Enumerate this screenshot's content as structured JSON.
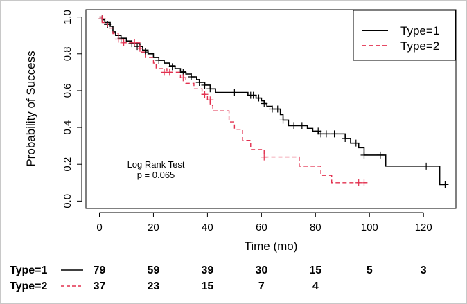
{
  "chart_data": {
    "type": "line",
    "subtype": "kaplan-meier step",
    "title": "",
    "xlabel": "Time (mo)",
    "ylabel": "Probability of Success",
    "xlim": [
      -5,
      132
    ],
    "ylim": [
      -0.04,
      1.04
    ],
    "x_ticks": [
      0,
      20,
      40,
      60,
      80,
      100,
      120
    ],
    "x_tick_labels": [
      "0",
      "20",
      "40",
      "60",
      "80",
      "100",
      "120"
    ],
    "y_ticks": [
      0.0,
      0.2,
      0.4,
      0.6,
      0.8,
      1.0
    ],
    "y_tick_labels": [
      "0.0",
      "0.2",
      "0.4",
      "0.6",
      "0.8",
      "1.0"
    ],
    "grid": false,
    "legend_position": "top-right",
    "annotation": {
      "line1": "Log Rank Test",
      "line2": "p = 0.065"
    },
    "series": [
      {
        "name": "Type=1",
        "color": "#000000",
        "dash": "solid",
        "steps": [
          [
            0,
            1.0
          ],
          [
            1,
            0.985
          ],
          [
            2,
            0.97
          ],
          [
            4,
            0.95
          ],
          [
            5,
            0.92
          ],
          [
            6,
            0.9
          ],
          [
            8,
            0.885
          ],
          [
            10,
            0.87
          ],
          [
            12,
            0.855
          ],
          [
            15,
            0.84
          ],
          [
            16,
            0.82
          ],
          [
            18,
            0.8
          ],
          [
            20,
            0.78
          ],
          [
            22,
            0.765
          ],
          [
            24,
            0.75
          ],
          [
            26,
            0.735
          ],
          [
            28,
            0.72
          ],
          [
            30,
            0.705
          ],
          [
            32,
            0.69
          ],
          [
            34,
            0.675
          ],
          [
            36,
            0.66
          ],
          [
            37,
            0.645
          ],
          [
            39,
            0.63
          ],
          [
            41,
            0.61
          ],
          [
            43,
            0.59
          ],
          [
            55,
            0.575
          ],
          [
            58,
            0.56
          ],
          [
            60,
            0.545
          ],
          [
            61,
            0.53
          ],
          [
            62,
            0.515
          ],
          [
            64,
            0.5
          ],
          [
            67,
            0.47
          ],
          [
            68,
            0.44
          ],
          [
            70,
            0.41
          ],
          [
            77,
            0.395
          ],
          [
            79,
            0.38
          ],
          [
            81,
            0.365
          ],
          [
            91,
            0.34
          ],
          [
            93,
            0.315
          ],
          [
            96,
            0.29
          ],
          [
            98,
            0.25
          ],
          [
            106,
            0.19
          ],
          [
            126,
            0.09
          ],
          [
            128,
            0.09
          ]
        ],
        "censored": [
          [
            1,
            0.99
          ],
          [
            3,
            0.96
          ],
          [
            8,
            0.885
          ],
          [
            12,
            0.855
          ],
          [
            14,
            0.84
          ],
          [
            17,
            0.81
          ],
          [
            22,
            0.765
          ],
          [
            27,
            0.73
          ],
          [
            31,
            0.7
          ],
          [
            34,
            0.675
          ],
          [
            37,
            0.645
          ],
          [
            39,
            0.63
          ],
          [
            41,
            0.61
          ],
          [
            50,
            0.59
          ],
          [
            56,
            0.575
          ],
          [
            57,
            0.575
          ],
          [
            59,
            0.56
          ],
          [
            61,
            0.53
          ],
          [
            64,
            0.5
          ],
          [
            66,
            0.5
          ],
          [
            68,
            0.44
          ],
          [
            72,
            0.41
          ],
          [
            75,
            0.41
          ],
          [
            81,
            0.38
          ],
          [
            82,
            0.365
          ],
          [
            84,
            0.365
          ],
          [
            87,
            0.365
          ],
          [
            91,
            0.34
          ],
          [
            95,
            0.315
          ],
          [
            98,
            0.25
          ],
          [
            104,
            0.25
          ],
          [
            121,
            0.19
          ],
          [
            128,
            0.09
          ]
        ]
      },
      {
        "name": "Type=2",
        "color": "#e2304f",
        "dash": "dashed",
        "steps": [
          [
            0,
            1.0
          ],
          [
            1,
            0.97
          ],
          [
            3,
            0.94
          ],
          [
            5,
            0.91
          ],
          [
            7,
            0.88
          ],
          [
            9,
            0.86
          ],
          [
            15,
            0.81
          ],
          [
            17,
            0.78
          ],
          [
            20,
            0.75
          ],
          [
            21,
            0.72
          ],
          [
            25,
            0.7
          ],
          [
            30,
            0.67
          ],
          [
            32,
            0.64
          ],
          [
            35,
            0.61
          ],
          [
            38,
            0.58
          ],
          [
            40,
            0.55
          ],
          [
            41,
            0.52
          ],
          [
            42,
            0.49
          ],
          [
            48,
            0.43
          ],
          [
            50,
            0.39
          ],
          [
            53,
            0.33
          ],
          [
            56,
            0.28
          ],
          [
            61,
            0.24
          ],
          [
            74,
            0.19
          ],
          [
            82,
            0.14
          ],
          [
            86,
            0.1
          ],
          [
            99,
            0.1
          ]
        ],
        "censored": [
          [
            1,
            0.99
          ],
          [
            7,
            0.88
          ],
          [
            9,
            0.86
          ],
          [
            13,
            0.86
          ],
          [
            15,
            0.83
          ],
          [
            24,
            0.7
          ],
          [
            26,
            0.7
          ],
          [
            31,
            0.67
          ],
          [
            39,
            0.58
          ],
          [
            41,
            0.55
          ],
          [
            61,
            0.24
          ],
          [
            96,
            0.1
          ],
          [
            98,
            0.1
          ]
        ]
      }
    ],
    "risk_table": {
      "rows": [
        {
          "label": "Type=1",
          "counts": [
            "79",
            "59",
            "39",
            "30",
            "15",
            "5",
            "3"
          ]
        },
        {
          "label": "Type=2",
          "counts": [
            "37",
            "23",
            "15",
            "7",
            "4"
          ]
        }
      ]
    }
  }
}
